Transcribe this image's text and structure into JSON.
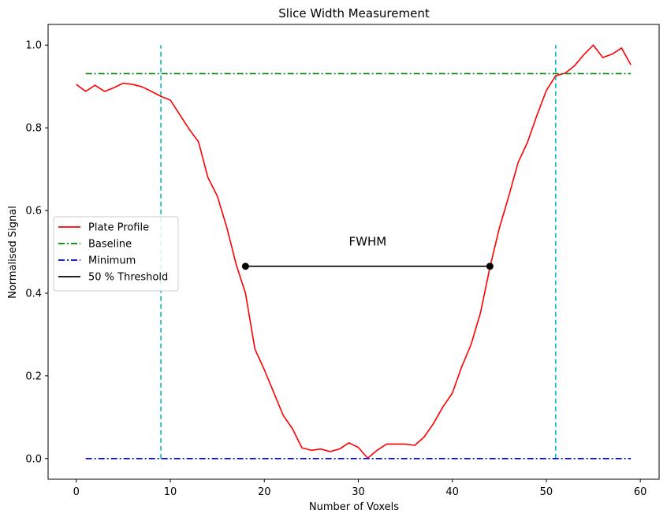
{
  "chart_data": {
    "type": "line",
    "title": "Slice Width Measurement",
    "xlabel": "Number of Voxels",
    "ylabel": "Normalised Signal",
    "xlim": [
      -3,
      62
    ],
    "ylim": [
      -0.05,
      1.05
    ],
    "xticks": [
      0,
      10,
      20,
      30,
      40,
      50,
      60
    ],
    "yticks": [
      0.0,
      0.2,
      0.4,
      0.6,
      0.8,
      1.0
    ],
    "xtick_labels": [
      "0",
      "10",
      "20",
      "30",
      "40",
      "50",
      "60"
    ],
    "ytick_labels": [
      "0.0",
      "0.2",
      "0.4",
      "0.6",
      "0.8",
      "1.0"
    ],
    "grid": false,
    "legend_position": "center-left",
    "series": [
      {
        "name": "Plate Profile",
        "color": "#ff0000",
        "style": "solid",
        "x": [
          0,
          1,
          2,
          3,
          4,
          5,
          6,
          7,
          8,
          9,
          10,
          11,
          12,
          13,
          14,
          15,
          16,
          17,
          18,
          19,
          20,
          21,
          22,
          23,
          24,
          25,
          26,
          27,
          28,
          29,
          30,
          31,
          32,
          33,
          34,
          35,
          36,
          37,
          38,
          39,
          40,
          41,
          42,
          43,
          44,
          45,
          46,
          47,
          48,
          49,
          50,
          51,
          52,
          53,
          54,
          55,
          56,
          57,
          58,
          59
        ],
        "y": [
          0.905,
          0.888,
          0.903,
          0.888,
          0.897,
          0.908,
          0.905,
          0.899,
          0.888,
          0.876,
          0.867,
          0.832,
          0.797,
          0.766,
          0.68,
          0.635,
          0.56,
          0.47,
          0.4,
          0.265,
          0.215,
          0.16,
          0.105,
          0.072,
          0.026,
          0.02,
          0.023,
          0.017,
          0.023,
          0.038,
          0.027,
          0.001,
          0.02,
          0.035,
          0.035,
          0.035,
          0.032,
          0.052,
          0.085,
          0.125,
          0.158,
          0.222,
          0.276,
          0.353,
          0.462,
          0.557,
          0.634,
          0.716,
          0.765,
          0.83,
          0.89,
          0.926,
          0.932,
          0.95,
          0.977,
          1.0,
          0.97,
          0.978,
          0.993,
          0.952
        ]
      },
      {
        "name": "Baseline",
        "color": "#008000",
        "style": "dashdot",
        "x": [
          1,
          59
        ],
        "y": [
          0.931,
          0.931
        ]
      },
      {
        "name": "Minimum",
        "color": "#0000ff",
        "style": "dashdot",
        "x": [
          1,
          59
        ],
        "y": [
          0.0,
          0.0
        ]
      },
      {
        "name": "50 % Threshold",
        "color": "#000000",
        "style": "solid",
        "markers": true,
        "x": [
          18,
          44
        ],
        "y": [
          0.465,
          0.465
        ]
      }
    ],
    "vertical_lines": [
      {
        "x": 9,
        "ymin": 0.0,
        "ymax": 1.0,
        "color": "#00bfbf",
        "style": "dashed"
      },
      {
        "x": 51,
        "ymin": 0.0,
        "ymax": 1.0,
        "color": "#00bfbf",
        "style": "dashed"
      }
    ],
    "annotations": [
      {
        "text": "FWHM",
        "x": 31,
        "y": 0.515
      }
    ]
  }
}
